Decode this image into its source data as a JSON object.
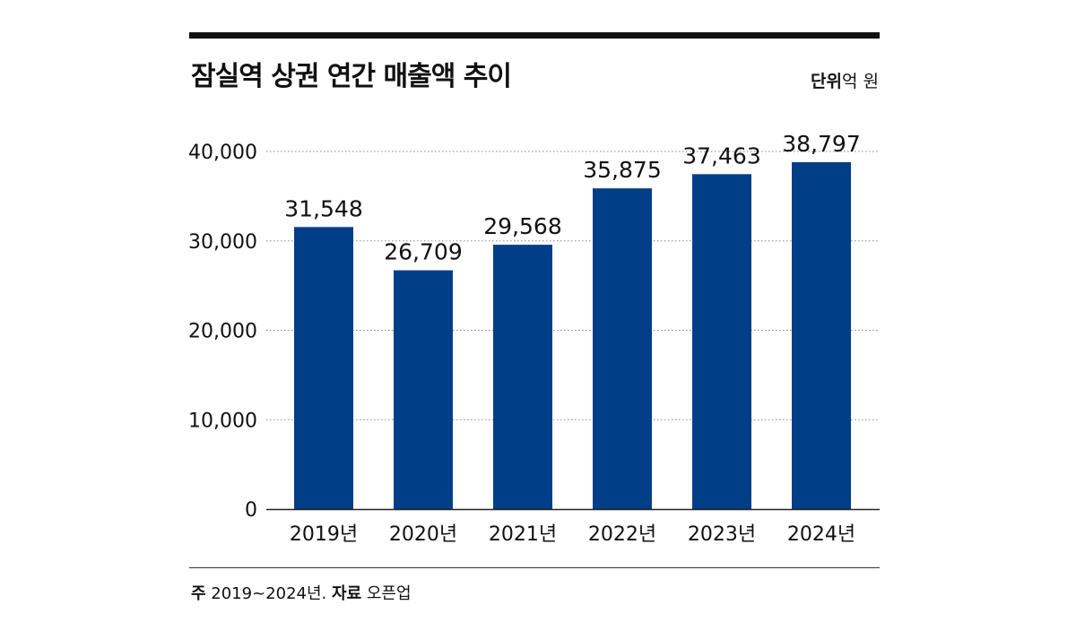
{
  "header": {
    "title": "잠실역 상권 연간 매출액 추이",
    "unit_label": "단위",
    "unit_value": "억 원"
  },
  "footer": {
    "note_label": "주",
    "note_text": "2019~2024년.",
    "source_label": "자료",
    "source_text": "오픈업"
  },
  "colors": {
    "bar": "#003f87",
    "grid": "#888888",
    "text": "#111111"
  },
  "chart_data": {
    "type": "bar",
    "categories": [
      "2019년",
      "2020년",
      "2021년",
      "2022년",
      "2023년",
      "2024년"
    ],
    "values": [
      31548,
      26709,
      29568,
      35875,
      37463,
      38797
    ],
    "value_labels": [
      "31,548",
      "26,709",
      "29,568",
      "35,875",
      "37,463",
      "38,797"
    ],
    "yticks": [
      0,
      10000,
      20000,
      30000,
      40000
    ],
    "ytick_labels": [
      "0",
      "10,000",
      "20,000",
      "30,000",
      "40,000"
    ],
    "ylim": [
      0,
      40000
    ],
    "grid": true,
    "legend": "none"
  }
}
